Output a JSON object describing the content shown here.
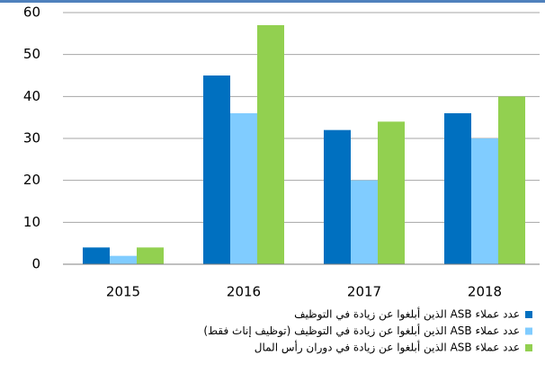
{
  "chart_data": {
    "type": "bar",
    "categories": [
      "2015",
      "2016",
      "2017",
      "2018"
    ],
    "series": [
      {
        "name": "عدد عملاء ASB الذين أبلغوا عن زيادة في التوظيف",
        "color": "#0070c0",
        "values": [
          4,
          45,
          32,
          36
        ]
      },
      {
        "name": "عدد عملاء ASB الذين أبلغوا عن زيادة في التوظيف (توظيف إناث فقط)",
        "color": "#80ccff",
        "values": [
          2,
          36,
          20,
          30
        ]
      },
      {
        "name": "عدد عملاء ASB الذين أبلغوا عن زيادة في دوران رأس المال",
        "color": "#92d050",
        "values": [
          4,
          57,
          34,
          40
        ]
      }
    ],
    "ylim": [
      0,
      60
    ],
    "yticks": [
      0,
      10,
      20,
      30,
      40,
      50,
      60
    ],
    "grid": true,
    "legend": "bottom"
  }
}
